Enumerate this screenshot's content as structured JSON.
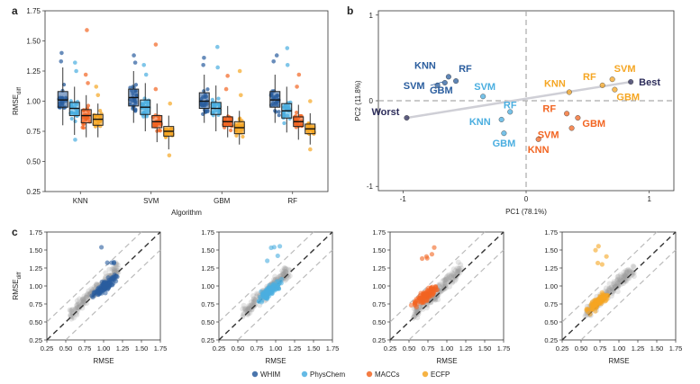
{
  "panel_labels": {
    "a": "a",
    "b": "b",
    "c": "c"
  },
  "colors": {
    "WHIM": "#2a5d9e",
    "PhysChem": "#4aaee0",
    "MACCs": "#f26522",
    "ECFP": "#f5a623",
    "extreme": "#2c2c5a",
    "grey": "#9a9a9a"
  },
  "chart_data": [
    {
      "id": "a",
      "type": "box",
      "ylabel_main": "RMSE",
      "ylabel_sub": "diff",
      "xlabel": "Algorithm",
      "ylim": [
        0.25,
        1.75
      ],
      "yticks": [
        "0.25",
        "0.50",
        "0.75",
        "1.00",
        "1.25",
        "1.50",
        "1.75"
      ],
      "categories": [
        "KNN",
        "SVM",
        "GBM",
        "RF"
      ],
      "series": [
        {
          "name": "WHIM",
          "color_key": "WHIM",
          "boxes": [
            {
              "min": 0.8,
              "q1": 0.95,
              "median": 1.01,
              "q3": 1.08,
              "max": 1.28,
              "outliers": [
                1.4,
                1.33
              ]
            },
            {
              "min": 0.82,
              "q1": 0.96,
              "median": 1.03,
              "q3": 1.1,
              "max": 1.25,
              "outliers": [
                1.38,
                1.32
              ]
            },
            {
              "min": 0.82,
              "q1": 0.94,
              "median": 1.0,
              "q3": 1.07,
              "max": 1.22,
              "outliers": [
                1.36,
                1.3
              ]
            },
            {
              "min": 0.82,
              "q1": 0.95,
              "median": 1.01,
              "q3": 1.08,
              "max": 1.22,
              "outliers": [
                1.38,
                1.33
              ]
            }
          ]
        },
        {
          "name": "PhysChem",
          "color_key": "PhysChem",
          "boxes": [
            {
              "min": 0.72,
              "q1": 0.88,
              "median": 0.94,
              "q3": 0.99,
              "max": 1.12,
              "outliers": [
                1.32,
                1.25,
                0.68
              ]
            },
            {
              "min": 0.75,
              "q1": 0.89,
              "median": 0.95,
              "q3": 1.01,
              "max": 1.15,
              "outliers": [
                1.3,
                1.22
              ]
            },
            {
              "min": 0.75,
              "q1": 0.89,
              "median": 0.94,
              "q3": 0.99,
              "max": 1.13,
              "outliers": [
                1.45,
                1.28
              ]
            },
            {
              "min": 0.74,
              "q1": 0.86,
              "median": 0.92,
              "q3": 0.98,
              "max": 1.12,
              "outliers": [
                1.44,
                1.3
              ]
            }
          ]
        },
        {
          "name": "MACCs",
          "color_key": "MACCs",
          "boxes": [
            {
              "min": 0.7,
              "q1": 0.82,
              "median": 0.88,
              "q3": 0.93,
              "max": 1.05,
              "outliers": [
                1.59,
                1.22,
                1.15
              ]
            },
            {
              "min": 0.66,
              "q1": 0.78,
              "median": 0.83,
              "q3": 0.88,
              "max": 0.98,
              "outliers": [
                1.47,
                1.1
              ]
            },
            {
              "min": 0.7,
              "q1": 0.79,
              "median": 0.83,
              "q3": 0.87,
              "max": 0.96,
              "outliers": [
                1.21,
                1.1
              ]
            },
            {
              "min": 0.68,
              "q1": 0.79,
              "median": 0.83,
              "q3": 0.87,
              "max": 0.97,
              "outliers": [
                1.22,
                1.12
              ]
            }
          ]
        },
        {
          "name": "ECFP",
          "color_key": "ECFP",
          "boxes": [
            {
              "min": 0.7,
              "q1": 0.8,
              "median": 0.85,
              "q3": 0.89,
              "max": 0.98,
              "outliers": [
                1.12,
                1.05
              ]
            },
            {
              "min": 0.6,
              "q1": 0.71,
              "median": 0.75,
              "q3": 0.79,
              "max": 0.88,
              "outliers": [
                0.98,
                0.55
              ]
            },
            {
              "min": 0.64,
              "q1": 0.73,
              "median": 0.78,
              "q3": 0.83,
              "max": 0.92,
              "outliers": [
                1.25,
                1.05
              ]
            },
            {
              "min": 0.64,
              "q1": 0.73,
              "median": 0.77,
              "q3": 0.81,
              "max": 0.9,
              "outliers": [
                1.0,
                0.6
              ]
            }
          ]
        }
      ]
    },
    {
      "id": "b",
      "type": "scatter",
      "xlabel": "PC1 (78.1%)",
      "ylabel": "PC2 (11.8%)",
      "xlim": [
        -1.2,
        1.2
      ],
      "ylim": [
        -1.05,
        1.05
      ],
      "xticks": [
        -1,
        0,
        1
      ],
      "yticks": [
        -1,
        0,
        1
      ],
      "points": [
        {
          "label": "KNN",
          "group": "WHIM",
          "x": -0.63,
          "y": 0.28
        },
        {
          "label": "RF",
          "group": "WHIM",
          "x": -0.57,
          "y": 0.23
        },
        {
          "label": "SVM",
          "group": "WHIM",
          "x": -0.72,
          "y": 0.18
        },
        {
          "label": "GBM",
          "group": "WHIM",
          "x": -0.66,
          "y": 0.21
        },
        {
          "label": "SVM",
          "group": "PhysChem",
          "x": -0.35,
          "y": 0.05
        },
        {
          "label": "RF",
          "group": "PhysChem",
          "x": -0.13,
          "y": -0.13
        },
        {
          "label": "KNN",
          "group": "PhysChem",
          "x": -0.2,
          "y": -0.22
        },
        {
          "label": "GBM",
          "group": "PhysChem",
          "x": -0.18,
          "y": -0.38
        },
        {
          "label": "RF",
          "group": "MACCs",
          "x": 0.33,
          "y": -0.15
        },
        {
          "label": "GBM",
          "group": "MACCs",
          "x": 0.42,
          "y": -0.2
        },
        {
          "label": "SVM",
          "group": "MACCs",
          "x": 0.37,
          "y": -0.32
        },
        {
          "label": "KNN",
          "group": "MACCs",
          "x": 0.1,
          "y": -0.45
        },
        {
          "label": "KNN",
          "group": "ECFP",
          "x": 0.35,
          "y": 0.1
        },
        {
          "label": "RF",
          "group": "ECFP",
          "x": 0.62,
          "y": 0.18
        },
        {
          "label": "SVM",
          "group": "ECFP",
          "x": 0.7,
          "y": 0.25
        },
        {
          "label": "GBM",
          "group": "ECFP",
          "x": 0.72,
          "y": 0.13
        },
        {
          "label": "Worst",
          "group": "extreme",
          "x": -0.97,
          "y": -0.2
        },
        {
          "label": "Best",
          "group": "extreme",
          "x": 0.85,
          "y": 0.22
        }
      ],
      "arrow": {
        "from": [
          -0.97,
          -0.2
        ],
        "to": [
          0.85,
          0.22
        ]
      }
    },
    {
      "id": "c",
      "type": "scatter",
      "xlabel": "RMSE",
      "ylabel_main": "RMSE",
      "ylabel_sub": "diff",
      "xlim": [
        0.25,
        1.75
      ],
      "ylim": [
        0.25,
        1.75
      ],
      "ticks": [
        "0.25",
        "0.50",
        "0.75",
        "1.00",
        "1.25",
        "1.50",
        "1.75"
      ],
      "legend_position": "bottom",
      "series": [
        {
          "name": "WHIM",
          "color_key": "WHIM"
        },
        {
          "name": "PhysChem",
          "color_key": "PhysChem"
        },
        {
          "name": "MACCs",
          "color_key": "MACCs"
        },
        {
          "name": "ECFP",
          "color_key": "ECFP"
        }
      ]
    }
  ]
}
